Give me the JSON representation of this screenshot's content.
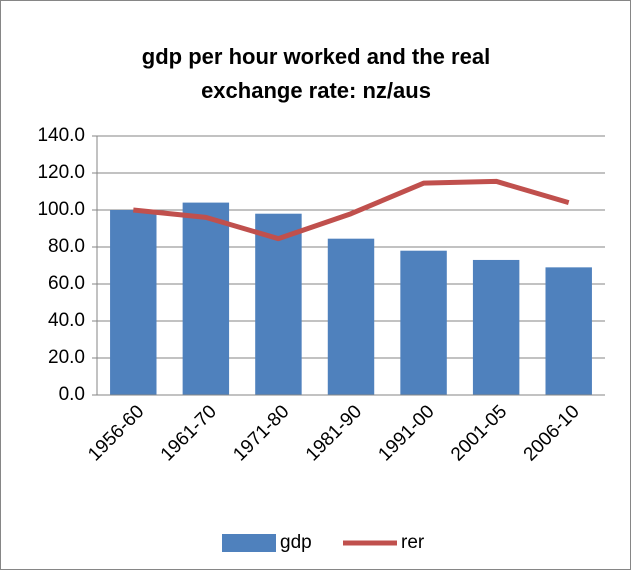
{
  "chart_data": {
    "type": "bar-line",
    "title": "gdp per hour worked and the real exchange rate: nz/aus",
    "categories": [
      "1956-60",
      "1961-70",
      "1971-80",
      "1981-90",
      "1991-00",
      "2001-05",
      "2006-10"
    ],
    "series": [
      {
        "name": "gdp",
        "type": "bar",
        "color": "#4f81bd",
        "values": [
          100,
          104,
          98,
          84.5,
          78,
          73,
          69
        ]
      },
      {
        "name": "rer",
        "type": "line",
        "color": "#c0504d",
        "values": [
          100,
          96,
          84.5,
          98,
          114.5,
          115.5,
          104
        ]
      }
    ],
    "ylim": [
      0,
      140
    ],
    "yticks": [
      {
        "value": 0,
        "label": "0.0"
      },
      {
        "value": 20,
        "label": "20.0"
      },
      {
        "value": 40,
        "label": "40.0"
      },
      {
        "value": 60,
        "label": "60.0"
      },
      {
        "value": 80,
        "label": "80.0"
      },
      {
        "value": 100,
        "label": "100.0"
      },
      {
        "value": 120,
        "label": "120.0"
      },
      {
        "value": 140,
        "label": "140.0"
      }
    ],
    "grid": true,
    "legend": "bottom"
  }
}
